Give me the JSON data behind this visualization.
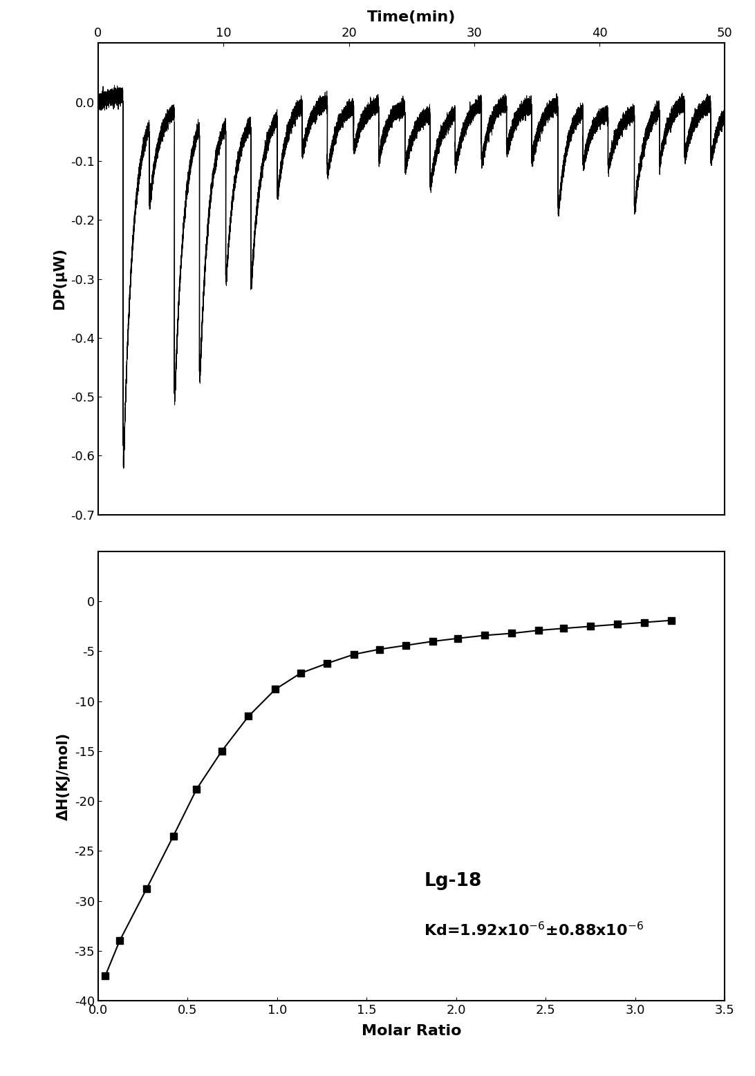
{
  "top_panel": {
    "xlabel": "Time(min)",
    "ylabel": "DP(μW)",
    "xlim": [
      0,
      50
    ],
    "ylim": [
      -0.7,
      0.1
    ],
    "yticks": [
      0.0,
      -0.1,
      -0.2,
      -0.3,
      -0.4,
      -0.5,
      -0.6,
      -0.7
    ],
    "xticks": [
      0,
      10,
      20,
      30,
      40,
      50
    ],
    "injection_times": [
      2.0,
      4.1,
      6.1,
      8.1,
      10.2,
      12.2,
      14.3,
      16.3,
      18.3,
      20.4,
      22.4,
      24.5,
      26.5,
      28.5,
      30.6,
      32.6,
      34.6,
      36.7,
      38.7,
      40.7,
      42.8,
      44.8,
      46.8,
      48.9
    ],
    "peak_depths": [
      -0.62,
      -0.13,
      -0.48,
      -0.42,
      -0.26,
      -0.27,
      -0.13,
      -0.08,
      -0.12,
      -0.07,
      -0.09,
      -0.1,
      -0.12,
      -0.09,
      -0.1,
      -0.08,
      -0.09,
      -0.18,
      -0.09,
      -0.09,
      -0.16,
      -0.09,
      -0.09,
      -0.09
    ],
    "recovery_times": [
      0.8,
      0.8,
      0.8,
      0.8,
      0.8,
      0.8,
      0.8,
      0.8,
      0.8,
      0.8,
      0.8,
      0.8,
      0.8,
      0.8,
      0.8,
      0.8,
      0.8,
      0.8,
      0.8,
      0.8,
      0.8,
      0.8,
      0.8,
      0.8
    ]
  },
  "bottom_panel": {
    "xlabel": "Molar Ratio",
    "ylabel": "ΔH(KJ/mol)",
    "xlim": [
      0,
      3.5
    ],
    "ylim": [
      -40,
      5
    ],
    "yticks": [
      0,
      -5,
      -10,
      -15,
      -20,
      -25,
      -30,
      -35,
      -40
    ],
    "xticks": [
      0.0,
      0.5,
      1.0,
      1.5,
      2.0,
      2.5,
      3.0,
      3.5
    ],
    "molar_ratio": [
      0.04,
      0.12,
      0.27,
      0.42,
      0.55,
      0.69,
      0.84,
      0.99,
      1.13,
      1.28,
      1.43,
      1.57,
      1.72,
      1.87,
      2.01,
      2.16,
      2.31,
      2.46,
      2.6,
      2.75,
      2.9,
      3.05,
      3.2
    ],
    "delta_h": [
      -37.5,
      -34.0,
      -28.8,
      -23.5,
      -18.8,
      -15.0,
      -11.5,
      -8.8,
      -7.2,
      -6.2,
      -5.3,
      -4.8,
      -4.4,
      -4.0,
      -3.7,
      -3.4,
      -3.2,
      -2.9,
      -2.7,
      -2.5,
      -2.3,
      -2.1,
      -1.9
    ],
    "label_text": "Lg-18",
    "kd_line1": "Kd=1.92x10",
    "kd_exp1": "-6",
    "kd_line2": "±0.88x10",
    "kd_exp2": "-6"
  },
  "line_color": "#000000",
  "background_color": "#ffffff",
  "noise_amplitude": 0.006,
  "top_height_ratio": 1.1,
  "bottom_height_ratio": 1.0
}
